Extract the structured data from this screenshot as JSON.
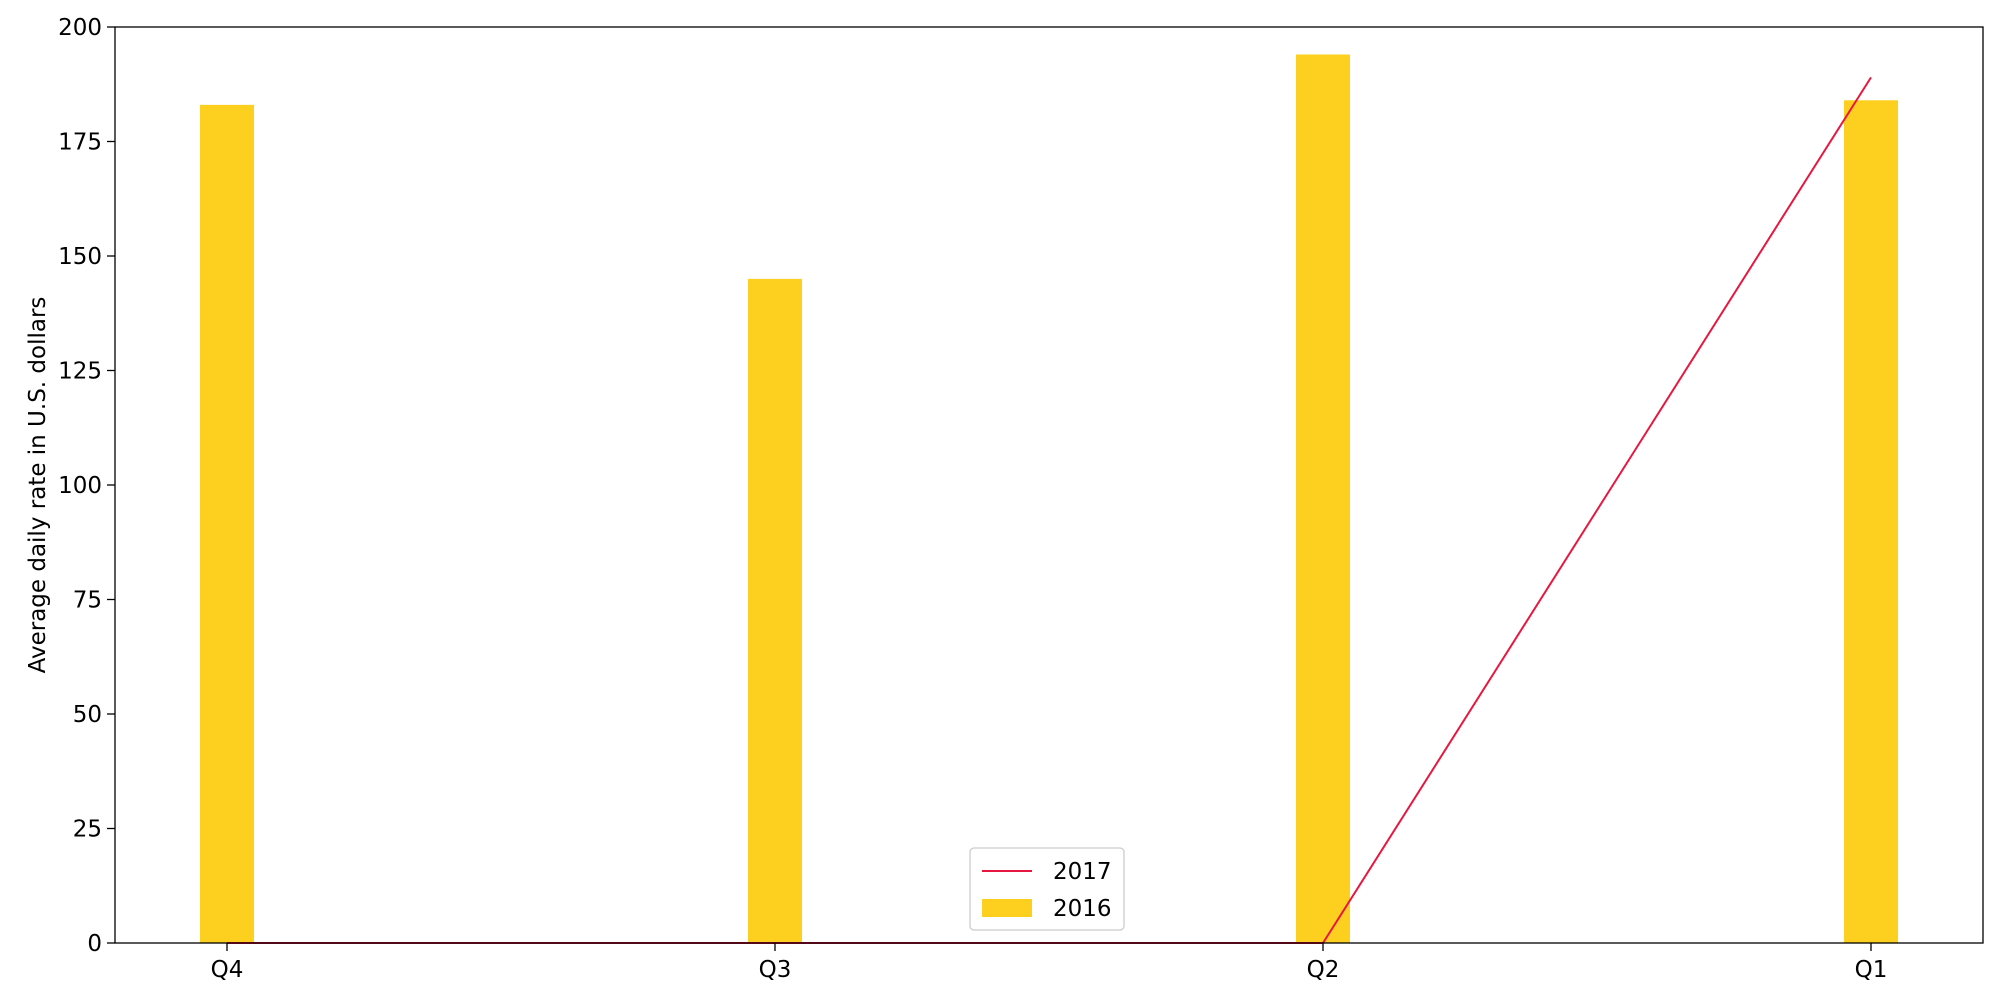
{
  "chart_data": {
    "type": "bar",
    "title": "",
    "xlabel": "",
    "ylabel": "Average daily rate in U.S. dollars",
    "categories": [
      "Q4",
      "Q3",
      "Q2",
      "Q1"
    ],
    "ylim": [
      0,
      200
    ],
    "yticks": [
      0,
      25,
      50,
      75,
      100,
      125,
      150,
      175,
      200
    ],
    "grid": false,
    "legend_position": "bottom-center",
    "series": [
      {
        "name": "2017",
        "kind": "line",
        "color": "#e8173f",
        "values": [
          0,
          0,
          0,
          189
        ]
      },
      {
        "name": "2016",
        "kind": "bar",
        "color": "#fdd020",
        "values": [
          183,
          145,
          194,
          184
        ]
      }
    ]
  }
}
